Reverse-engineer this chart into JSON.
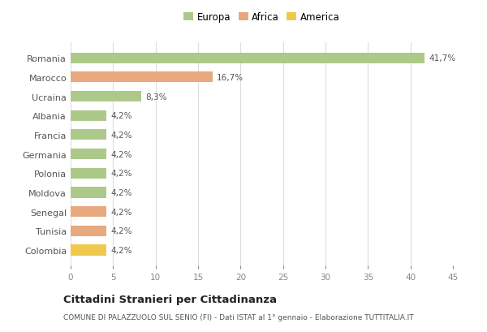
{
  "countries": [
    "Romania",
    "Marocco",
    "Ucraina",
    "Albania",
    "Francia",
    "Germania",
    "Polonia",
    "Moldova",
    "Senegal",
    "Tunisia",
    "Colombia"
  ],
  "values": [
    41.7,
    16.7,
    8.3,
    4.2,
    4.2,
    4.2,
    4.2,
    4.2,
    4.2,
    4.2,
    4.2
  ],
  "labels": [
    "41,7%",
    "16,7%",
    "8,3%",
    "4,2%",
    "4,2%",
    "4,2%",
    "4,2%",
    "4,2%",
    "4,2%",
    "4,2%",
    "4,2%"
  ],
  "colors": [
    "#adc98a",
    "#e8a97e",
    "#adc98a",
    "#adc98a",
    "#adc98a",
    "#adc98a",
    "#adc98a",
    "#adc98a",
    "#e8a97e",
    "#e8a97e",
    "#f0c84e"
  ],
  "legend": [
    {
      "label": "Europa",
      "color": "#adc98a"
    },
    {
      "label": "Africa",
      "color": "#e8a97e"
    },
    {
      "label": "America",
      "color": "#f0c84e"
    }
  ],
  "xlim": [
    0,
    45
  ],
  "xticks": [
    0,
    5,
    10,
    15,
    20,
    25,
    30,
    35,
    40,
    45
  ],
  "title": "Cittadini Stranieri per Cittadinanza",
  "subtitle": "COMUNE DI PALAZZUOLO SUL SENIO (FI) - Dati ISTAT al 1° gennaio - Elaborazione TUTTITALIA.IT",
  "background_color": "#ffffff",
  "bar_height": 0.55
}
